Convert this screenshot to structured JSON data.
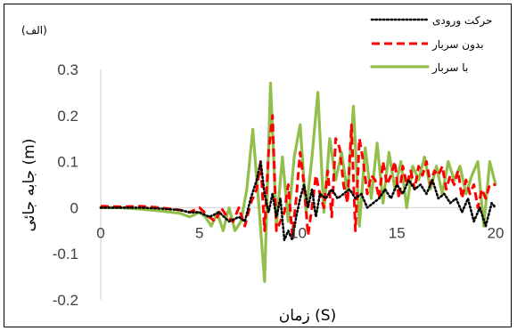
{
  "chart_data": {
    "type": "line",
    "panel_label": "(الف)",
    "xlabel": "زمان (S)",
    "ylabel": "جابه جائی (m)",
    "xlim": [
      0,
      20
    ],
    "ylim": [
      -0.2,
      0.3
    ],
    "xticks": [
      "0",
      "5",
      "10",
      "15",
      "20"
    ],
    "yticks": [
      "-0.2",
      "-0.1",
      "0",
      "0.1",
      "0.2",
      "0.3"
    ],
    "grid": false,
    "legend_position": "top-right",
    "series": [
      {
        "name": "حرکت ورودی",
        "color": "#000000",
        "style": "dotted",
        "x": [
          0,
          1,
          2,
          3,
          4,
          4.5,
          5,
          5.5,
          6,
          6.5,
          7,
          7.3,
          7.6,
          7.9,
          8.1,
          8.3,
          8.5,
          8.7,
          8.9,
          9.1,
          9.3,
          9.5,
          9.7,
          9.9,
          10.1,
          10.3,
          10.5,
          10.7,
          10.9,
          11.1,
          11.4,
          11.7,
          12,
          12.3,
          12.6,
          12.9,
          13.2,
          13.5,
          13.8,
          14.1,
          14.4,
          14.7,
          15,
          15.3,
          15.6,
          15.9,
          16.2,
          16.5,
          16.8,
          17.1,
          17.4,
          17.7,
          18,
          18.3,
          18.6,
          18.9,
          19.2,
          19.5,
          19.8,
          20
        ],
        "y": [
          0,
          0,
          0,
          -0.002,
          -0.005,
          -0.01,
          -0.01,
          -0.02,
          -0.01,
          -0.03,
          -0.02,
          -0.03,
          0.02,
          0.06,
          0.1,
          0.03,
          -0.01,
          0.03,
          -0.02,
          0.02,
          -0.07,
          -0.05,
          -0.07,
          -0.02,
          0.02,
          0.05,
          0,
          0.04,
          -0.02,
          0.03,
          0.02,
          0.04,
          0.02,
          0.03,
          0.04,
          0.02,
          0.03,
          0,
          0.01,
          0.02,
          0.04,
          0.02,
          0.05,
          0.03,
          0.06,
          0.04,
          0.05,
          0.03,
          0.06,
          0.02,
          0.03,
          0.01,
          0.02,
          -0.01,
          0.02,
          -0.03,
          0,
          -0.04,
          0.01,
          0
        ]
      },
      {
        "name": "بدون سربار",
        "color": "#ff0000",
        "style": "dashed",
        "x": [
          0,
          1,
          2,
          3,
          4,
          4.5,
          5,
          5.5,
          5.8,
          6.1,
          6.4,
          6.7,
          7,
          7.3,
          7.6,
          7.9,
          8.1,
          8.3,
          8.5,
          8.7,
          8.9,
          9.1,
          9.3,
          9.5,
          9.7,
          9.9,
          10.1,
          10.3,
          10.5,
          10.7,
          10.9,
          11.1,
          11.3,
          11.5,
          11.7,
          11.9,
          12.1,
          12.3,
          12.5,
          12.7,
          12.9,
          13.1,
          13.3,
          13.5,
          13.7,
          13.9,
          14.1,
          14.3,
          14.5,
          14.7,
          14.9,
          15.1,
          15.3,
          15.5,
          15.7,
          15.9,
          16.1,
          16.3,
          16.5,
          16.7,
          16.9,
          17.1,
          17.3,
          17.5,
          17.7,
          17.9,
          18.1,
          18.3,
          18.5,
          18.7,
          18.9,
          19.1,
          19.3,
          19.5,
          19.7,
          20
        ],
        "y": [
          0.003,
          0.002,
          0.003,
          0,
          -0.005,
          -0.01,
          0,
          -0.02,
          -0.03,
          0,
          -0.02,
          -0.03,
          0,
          -0.04,
          0.01,
          0.04,
          0.1,
          -0.05,
          0.12,
          0.2,
          -0.05,
          -0.03,
          -0.01,
          0.05,
          -0.06,
          0.02,
          0.12,
          0.05,
          -0.06,
          0,
          0.07,
          0.03,
          0,
          0.08,
          -0.02,
          0.15,
          0.13,
          0.05,
          0.01,
          0.18,
          -0.05,
          0.15,
          0.1,
          0.03,
          0.07,
          0.06,
          0.02,
          0.1,
          0.05,
          0.07,
          0.1,
          0.02,
          0.09,
          0.05,
          0.08,
          0.04,
          0.09,
          0.07,
          0.1,
          0.05,
          0.08,
          0.07,
          0.09,
          0.04,
          0.07,
          0.05,
          0.08,
          0.02,
          0.06,
          0.03,
          0.05,
          0,
          0.04,
          0.02,
          0.05,
          0.05
        ]
      },
      {
        "name": "با سربار",
        "color": "#92bf4c",
        "style": "solid",
        "x": [
          0,
          1,
          2,
          3,
          4,
          4.5,
          5,
          5.3,
          5.6,
          5.9,
          6.2,
          6.5,
          6.8,
          7.1,
          7.4,
          7.7,
          8,
          8.3,
          8.6,
          8.9,
          9.2,
          9.5,
          9.8,
          10.1,
          10.4,
          10.7,
          11,
          11.3,
          11.6,
          11.9,
          12.2,
          12.5,
          12.8,
          13.1,
          13.4,
          13.7,
          14,
          14.3,
          14.6,
          14.9,
          15.2,
          15.5,
          15.8,
          16.1,
          16.4,
          16.7,
          17,
          17.3,
          17.6,
          17.9,
          18.2,
          18.5,
          18.8,
          19.1,
          19.4,
          19.7,
          20
        ],
        "y": [
          0,
          0,
          -0.003,
          -0.007,
          -0.012,
          -0.02,
          -0.01,
          -0.02,
          -0.04,
          -0.01,
          -0.05,
          0,
          -0.05,
          -0.03,
          0.04,
          0.17,
          0.01,
          -0.16,
          0.27,
          -0.04,
          0.11,
          -0.03,
          0.11,
          0.18,
          -0.01,
          0.11,
          0.25,
          -0.01,
          0.15,
          0.06,
          0.12,
          0.03,
          0.22,
          -0.04,
          0.13,
          0.02,
          0.14,
          0.01,
          0.12,
          0.04,
          0.1,
          0,
          0.09,
          0.06,
          0.11,
          0.04,
          0.09,
          0.03,
          0.1,
          0.06,
          0.09,
          0.03,
          0.07,
          0.1,
          -0.04,
          0.1,
          0.05
        ]
      }
    ]
  }
}
